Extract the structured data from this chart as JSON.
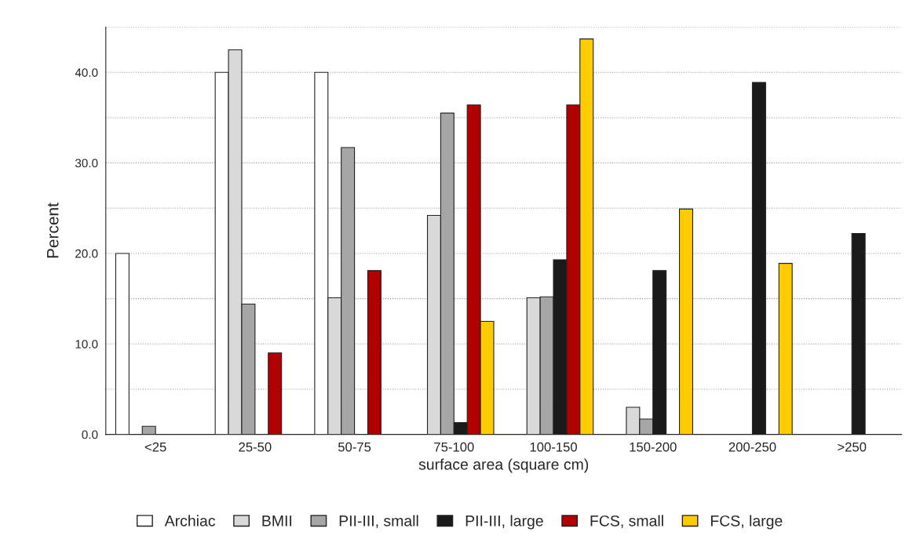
{
  "chart_data": {
    "type": "bar",
    "xlabel": "surface area (square cm)",
    "ylabel": "Percent",
    "categories": [
      "<25",
      "25-50",
      "50-75",
      "75-100",
      "100-150",
      "150-200",
      "200-250",
      ">250"
    ],
    "series": [
      {
        "name": "Archiac",
        "color": "#ffffff",
        "values": [
          20.0,
          40.0,
          40.0,
          null,
          null,
          null,
          null,
          null
        ]
      },
      {
        "name": "BMII",
        "color": "#d9d9d9",
        "values": [
          null,
          42.5,
          15.1,
          24.2,
          15.1,
          3.0,
          null,
          null
        ]
      },
      {
        "name": "PII-III, small",
        "color": "#a6a6a6",
        "values": [
          0.9,
          14.4,
          31.7,
          35.5,
          15.2,
          1.7,
          null,
          null
        ]
      },
      {
        "name": "PII-III, large",
        "color": "#1a1a1a",
        "values": [
          null,
          null,
          null,
          1.3,
          19.3,
          18.1,
          38.9,
          22.2
        ]
      },
      {
        "name": "FCS, small",
        "color": "#b00000",
        "values": [
          null,
          9.0,
          18.1,
          36.4,
          36.4,
          null,
          null,
          null
        ]
      },
      {
        "name": "FCS, large",
        "color": "#ffcc00",
        "values": [
          null,
          null,
          null,
          12.5,
          43.7,
          24.9,
          18.9,
          null
        ]
      }
    ],
    "ylim": [
      0,
      45
    ],
    "yticks": [
      {
        "value": 0,
        "label": "0.0"
      },
      {
        "value": 5,
        "label": null
      },
      {
        "value": 10,
        "label": "10.0"
      },
      {
        "value": 15,
        "label": null
      },
      {
        "value": 20,
        "label": "20.0"
      },
      {
        "value": 25,
        "label": null
      },
      {
        "value": 30,
        "label": "30.0"
      },
      {
        "value": 35,
        "label": null
      },
      {
        "value": 40,
        "label": "40.0"
      },
      {
        "value": 45,
        "label": null
      }
    ],
    "grid": "y",
    "legend": "bottom"
  }
}
